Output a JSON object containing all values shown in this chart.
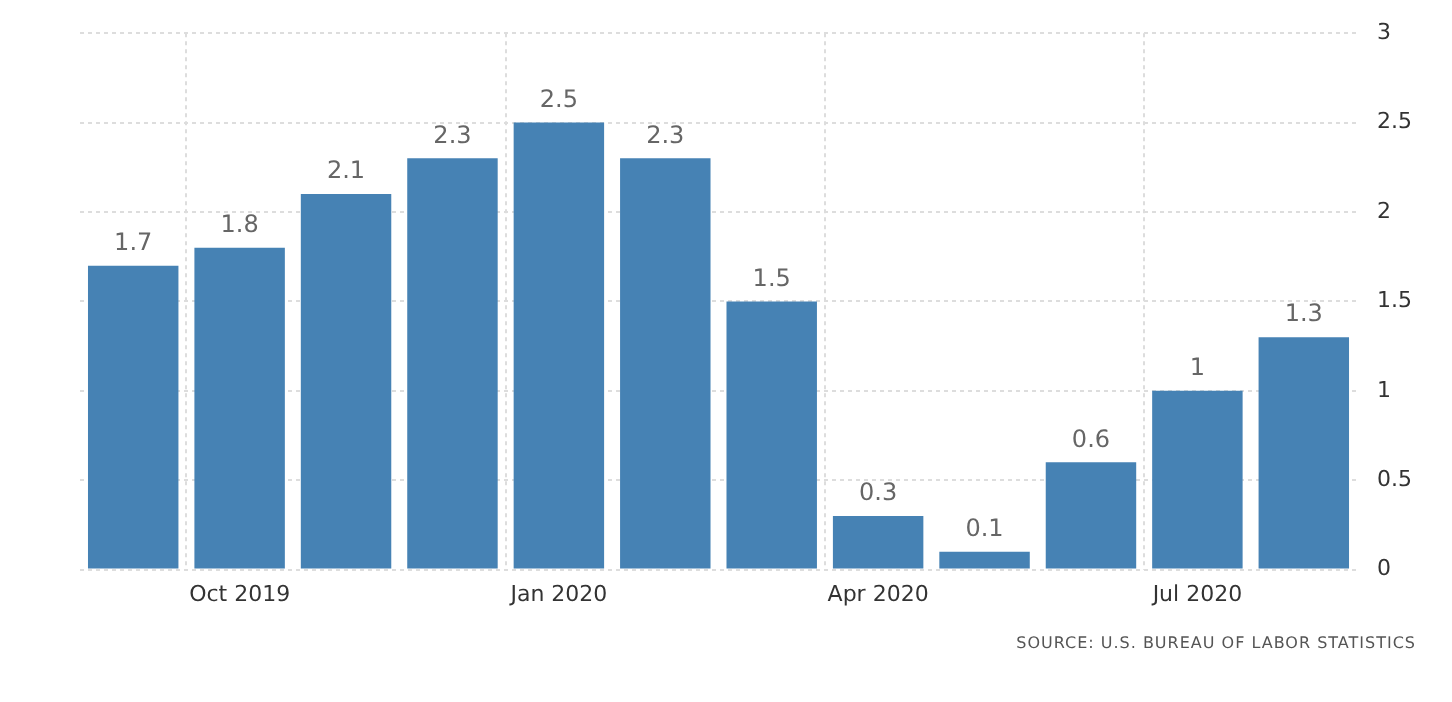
{
  "chart_data": {
    "type": "bar",
    "categories": [
      null,
      "Oct 2019",
      null,
      null,
      "Jan 2020",
      null,
      null,
      "Apr 2020",
      null,
      null,
      "Jul 2020",
      null
    ],
    "values": [
      1.7,
      1.8,
      2.1,
      2.3,
      2.5,
      2.3,
      1.5,
      0.3,
      0.1,
      0.6,
      1,
      1.3
    ],
    "color": "#4682b4",
    "ylim": [
      0,
      3
    ],
    "yticks": [
      0,
      0.5,
      1,
      1.5,
      2,
      2.5,
      3
    ],
    "grid": true,
    "data_labels": true,
    "legend": false,
    "annotations": [
      "SOURCE: U.S. BUREAU OF LABOR STATISTICS"
    ]
  }
}
